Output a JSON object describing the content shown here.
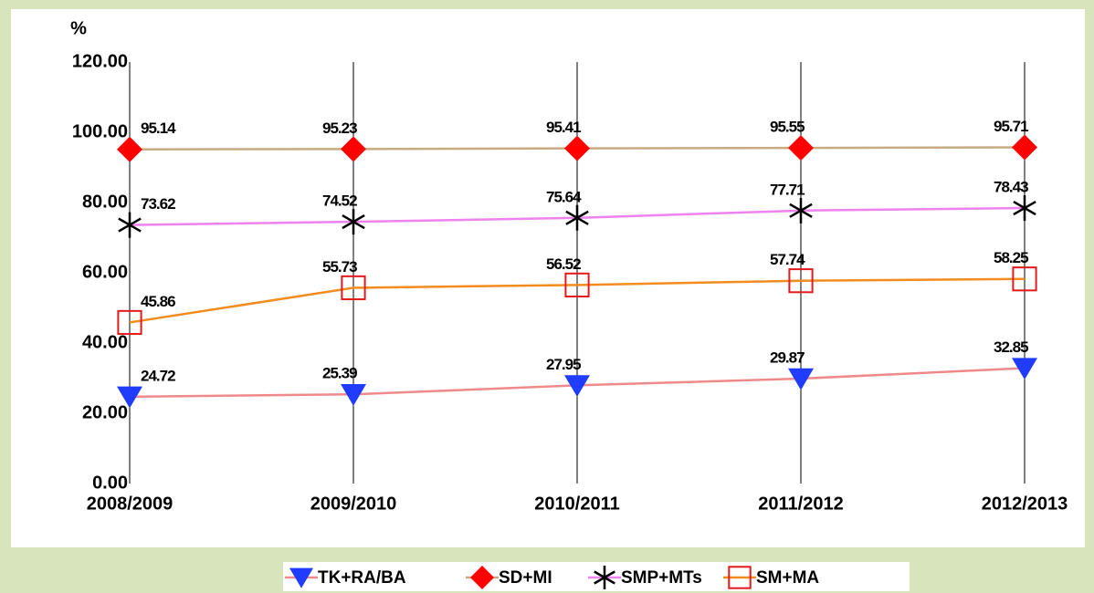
{
  "chart_data": {
    "type": "line",
    "y_axis_label": "%",
    "categories": [
      "2008/2009",
      "2009/2010",
      "2010/2011",
      "2011/2012",
      "2012/2013"
    ],
    "series": [
      {
        "name": "TK+RA/BA",
        "color": "#f08a8a",
        "marker": "triangle-down",
        "marker_color": "#1f3cff",
        "values": [
          24.72,
          25.39,
          27.95,
          29.87,
          32.85
        ]
      },
      {
        "name": "SD+MI",
        "color": "#c8aa80",
        "marker": "diamond",
        "marker_color": "#ff0000",
        "values": [
          95.14,
          95.23,
          95.41,
          95.55,
          95.71
        ]
      },
      {
        "name": "SMP+MTs",
        "color": "#ee82ee",
        "marker": "asterisk",
        "marker_color": "#000000",
        "values": [
          73.62,
          74.52,
          75.64,
          77.71,
          78.43
        ]
      },
      {
        "name": "SM+MA",
        "color": "#f28c1e",
        "marker": "square-open",
        "marker_color": "#e31a1c",
        "values": [
          45.86,
          55.73,
          56.52,
          57.74,
          58.25
        ]
      }
    ],
    "ylim": [
      0,
      120
    ],
    "yticks": [
      {
        "value": 0,
        "label": "0.00"
      },
      {
        "value": 20,
        "label": "20.00"
      },
      {
        "value": 40,
        "label": "40.00"
      },
      {
        "value": 60,
        "label": "60.00"
      },
      {
        "value": 80,
        "label": "80.00"
      },
      {
        "value": 100,
        "label": "100.00"
      },
      {
        "value": 120,
        "label": "120.00"
      }
    ],
    "grid": "vertical",
    "legend": "bottom"
  }
}
